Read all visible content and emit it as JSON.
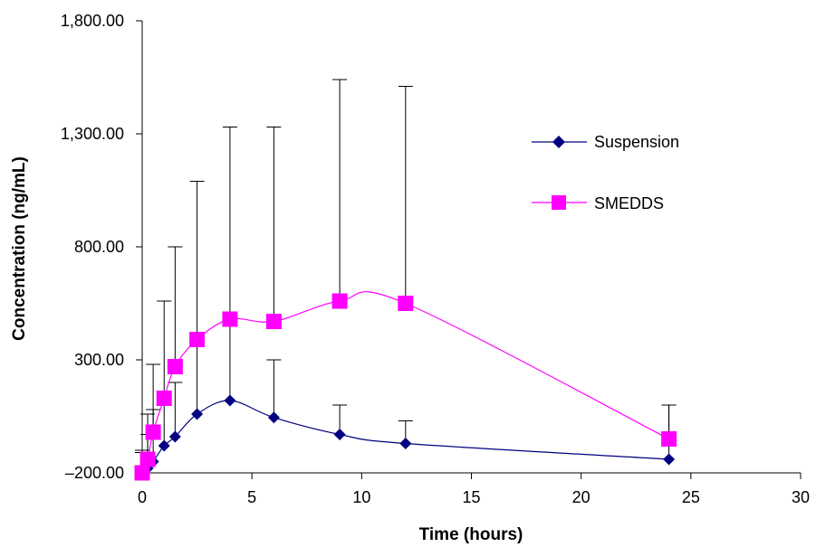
{
  "chart_data": {
    "type": "line",
    "title": "",
    "xlabel": "Time (hours)",
    "ylabel": "Concentration (ng/mL)",
    "xlim": [
      0,
      30
    ],
    "ylim": [
      -200,
      1800
    ],
    "xticks": [
      0,
      5,
      10,
      15,
      20,
      25,
      30
    ],
    "xtick_labels": [
      "0",
      "5",
      "10",
      "15",
      "20",
      "25",
      "30"
    ],
    "yticks": [
      -200,
      300,
      800,
      1300,
      1800
    ],
    "ytick_labels": [
      "–200.00",
      "300.00",
      "800.00",
      "1,300.00",
      "1,800.00"
    ],
    "grid": false,
    "legend_position": "right",
    "series": [
      {
        "name": "Suspension",
        "color": "#000080",
        "marker": "diamond",
        "x": [
          0,
          0.25,
          0.5,
          1,
          1.5,
          2.5,
          4,
          6,
          9,
          12,
          24
        ],
        "y": [
          -200,
          -180,
          -150,
          -80,
          -40,
          60,
          120,
          45,
          -30,
          -70,
          -140
        ],
        "error_upper": [
          -100,
          -30,
          80,
          150,
          200,
          360,
          450,
          300,
          100,
          30,
          100
        ]
      },
      {
        "name": "SMEDDS",
        "color": "#FF00FF",
        "marker": "square",
        "x": [
          0,
          0.25,
          0.5,
          1,
          1.5,
          2.5,
          4,
          6,
          9,
          12,
          24
        ],
        "y": [
          -200,
          -140,
          -20,
          130,
          270,
          390,
          480,
          470,
          560,
          550,
          -50
        ],
        "error_upper": [
          -110,
          60,
          280,
          560,
          800,
          1090,
          1330,
          1330,
          1540,
          1510,
          100
        ]
      }
    ]
  }
}
